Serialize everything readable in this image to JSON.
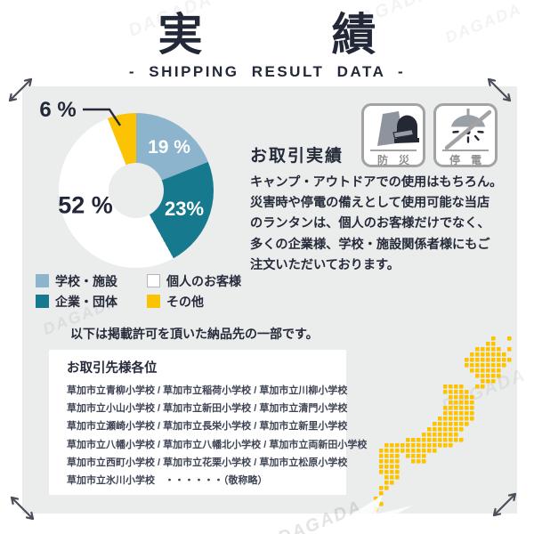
{
  "header": {
    "title_left": "実",
    "title_right": "績",
    "subtitle": "- SHIPPING RESULT DATA -"
  },
  "chart_data": {
    "type": "pie",
    "subtype": "donut",
    "start_angle_deg": 0,
    "direction": "clockwise",
    "slices": [
      {
        "label": "学校・施設",
        "value": 19,
        "display": "19 %",
        "color": "#8cb4cc",
        "label_color": "#ffffff"
      },
      {
        "label": "企業・団体",
        "value": 23,
        "display": "23%",
        "color": "#16798d",
        "label_color": "#ffffff"
      },
      {
        "label": "個人のお客様",
        "value": 52,
        "display": "52 %",
        "color": "#ffffff",
        "label_color": "#232838"
      },
      {
        "label": "その他",
        "value": 6,
        "display": "6 %",
        "color": "#fcc303",
        "label_color": "#232838"
      }
    ]
  },
  "legend": {
    "items": [
      {
        "label": "学校・施設",
        "color": "#8cb4cc",
        "border": ""
      },
      {
        "label": "個人のお客様",
        "color": "#ffffff",
        "border": "#b5b5b5"
      },
      {
        "label": "企業・団体",
        "color": "#16798d",
        "border": ""
      },
      {
        "label": "その他",
        "color": "#fcc303",
        "border": ""
      }
    ]
  },
  "trade": {
    "heading": "お取引実績",
    "badges": [
      {
        "label": "防災",
        "icon": "emergency-bag-icon"
      },
      {
        "label": "停電",
        "icon": "no-power-lamp-icon"
      }
    ],
    "body_lines": [
      "キャンプ・アウトドアでの使用はもちろん。",
      "災害時や停電の備えとして使用可能な当店",
      "のランタンは、個人のお客様だけでなく、",
      "多くの企業様、学校・施設関係者様にもご",
      "注文いただいております。"
    ]
  },
  "note": "以下は掲載許可を頂いた納品先の一部です。",
  "clients": {
    "heading": "お取引先様各位",
    "lines": [
      "草加市立青柳小学校 / 草加市立稲荷小学校 / 草加市立川柳小学校",
      "草加市立小山小学校 / 草加市立新田小学校 / 草加市立清門小学校",
      "草加市立瀬崎小学校 / 草加市立長栄小学校 / 草加市立新里小学校",
      "草加市立八幡小学校 / 草加市立八幡北小学校 / 草加市立両新田小学校",
      "草加市立西町小学校 / 草加市立花栗小学校 / 草加市立松原小学校",
      "草加市立氷川小学校　・・・・・・（敬称略）"
    ]
  },
  "map": {
    "region": "japan",
    "dot_color": "#fcc303",
    "cell": 6,
    "dot": 4.6,
    "bitmap": [
      "......................#..#.",
      ".....................##....",
      "...................#####.#.",
      "..................#######..",
      ".................#########.",
      ".................########..",
      "..................######...",
      "...................#####...",
      "....................###....",
      ".............####..##......",
      ".............#####.........",
      "..............#####........",
      "..............#####........",
      ".............######........",
      ".............######........",
      "............#######........",
      "...........#######.........",
      "..........#######..........",
      ".........#######...........",
      "......###########..........",
      "..#############............",
      ".###########...............",
      ".####.####.................",
      ".####..###.................",
      ".####......................",
      ".####......................",
      "..###......................",
      "..##.......................",
      ".##........................",
      ".#.........................",
      "#..........................",
      ".#.........................",
      "#.........................."
    ]
  },
  "watermark": {
    "text": "DAGADA"
  },
  "colors": {
    "panel_bg": "#ebecec",
    "ink": "#262b3a",
    "badge_border": "#a3a3a3",
    "badge_label": "#8f8f8f"
  }
}
